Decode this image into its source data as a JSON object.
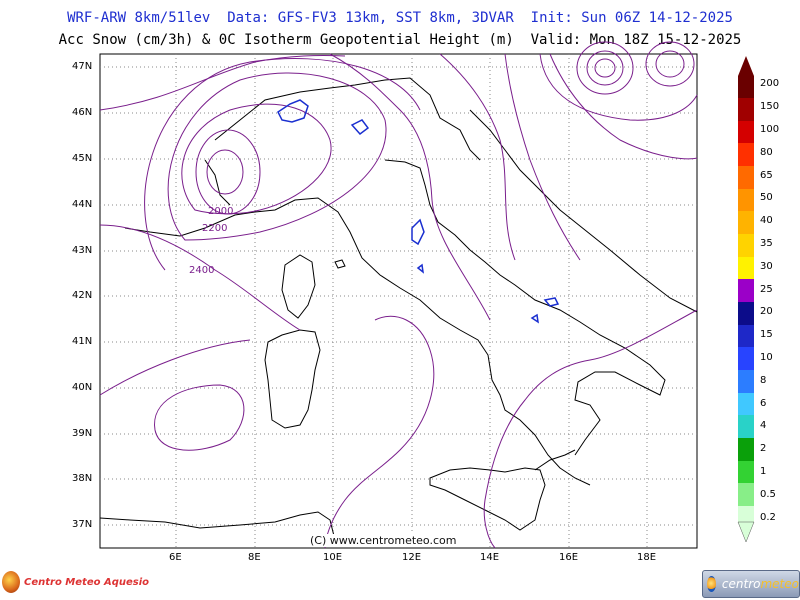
{
  "header": {
    "line1": "WRF-ARW 8km/51lev  Data: GFS-FV3 13km, SST 8km, 3DVAR  Init: Sun 06Z 14-12-2025",
    "line2": "Acc Snow (cm/3h) & 0C Isotherm Geopotential Height (m)  Valid: Mon 18Z 15-12-2025"
  },
  "map": {
    "lat_labels": [
      "47N",
      "46N",
      "45N",
      "44N",
      "43N",
      "42N",
      "41N",
      "40N",
      "39N",
      "38N",
      "37N"
    ],
    "lon_labels": [
      "6E",
      "8E",
      "10E",
      "12E",
      "14E",
      "16E",
      "18E"
    ],
    "contour_labels": [
      "2000",
      "2200",
      "2400"
    ],
    "credit": "(C) www.centrometeo.com",
    "colors": {
      "contour": "#7a1f8c",
      "snow_outline": "#1a2fd0",
      "coast": "#000000",
      "grid": "#808080"
    }
  },
  "legend": {
    "labels": [
      "200",
      "150",
      "100",
      "80",
      "65",
      "50",
      "40",
      "35",
      "30",
      "25",
      "20",
      "15",
      "10",
      "8",
      "6",
      "4",
      "2",
      "1",
      "0.5",
      "0.2"
    ],
    "colors": [
      "#6a0000",
      "#a00000",
      "#d40000",
      "#ff3000",
      "#ff6a00",
      "#ff9400",
      "#ffb300",
      "#ffd300",
      "#fff200",
      "#9b00c8",
      "#0c0c8a",
      "#1e28c8",
      "#2844ff",
      "#2c7dff",
      "#40c8ff",
      "#29d2c8",
      "#0aa00a",
      "#33d233",
      "#88ee88",
      "#d8ffd8"
    ]
  },
  "logos": {
    "left_text": "Centro Meteo Aquesio",
    "right_text_a": "centro",
    "right_text_b": "meteo"
  }
}
